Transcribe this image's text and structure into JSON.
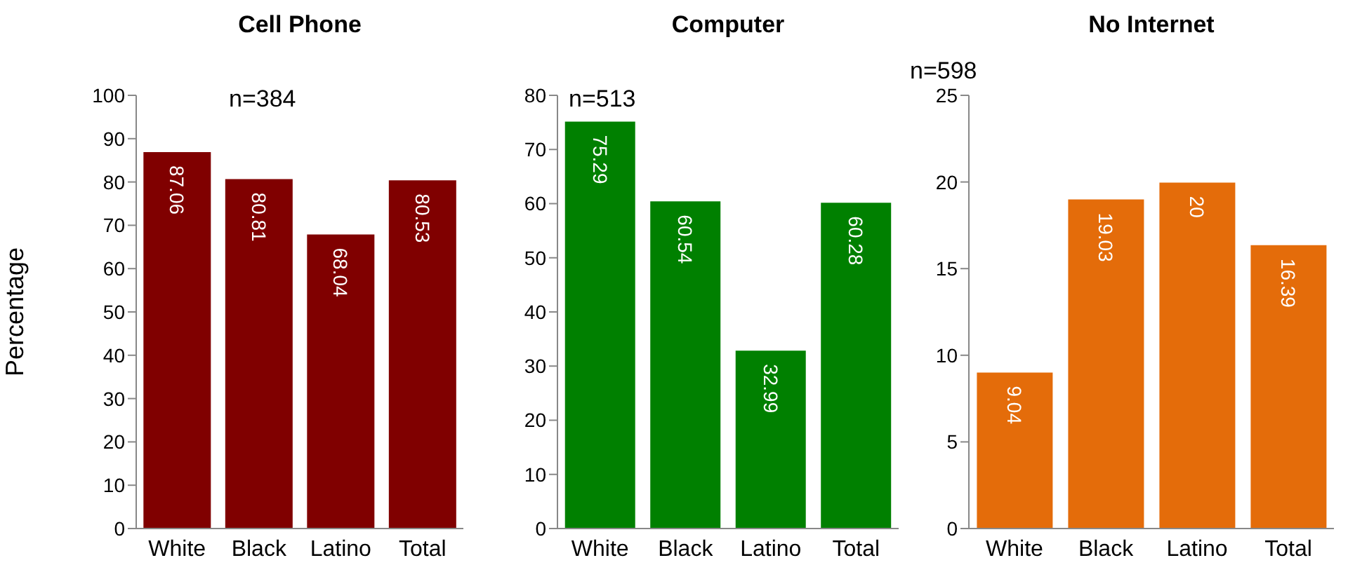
{
  "chart_data": [
    {
      "type": "bar",
      "title": "Cell Phone",
      "ylabel": "Percentage",
      "categories": [
        "White",
        "Black",
        "Latino",
        "Total"
      ],
      "values": [
        87.06,
        80.81,
        68.04,
        80.53
      ],
      "color": "#800000",
      "ylim": [
        0,
        100
      ],
      "yticks": [
        0,
        10,
        20,
        30,
        40,
        50,
        60,
        70,
        80,
        90,
        100
      ],
      "data_labels": true,
      "annotations": [
        "n=384"
      ]
    },
    {
      "type": "bar",
      "title": "Computer",
      "categories": [
        "White",
        "Black",
        "Latino",
        "Total"
      ],
      "values": [
        75.29,
        60.54,
        32.99,
        60.28
      ],
      "color": "#008000",
      "ylim": [
        0,
        80
      ],
      "yticks": [
        0,
        10,
        20,
        30,
        40,
        50,
        60,
        70,
        80
      ],
      "data_labels": true,
      "annotations": [
        "n=513"
      ]
    },
    {
      "type": "bar",
      "title": "No Internet",
      "categories": [
        "White",
        "Black",
        "Latino",
        "Total"
      ],
      "values": [
        9.04,
        19.03,
        20,
        16.39
      ],
      "color": "#e46c0a",
      "ylim": [
        0,
        25
      ],
      "yticks": [
        0,
        5,
        10,
        15,
        20,
        25
      ],
      "data_labels": true,
      "annotations": [
        "n=598"
      ]
    }
  ]
}
